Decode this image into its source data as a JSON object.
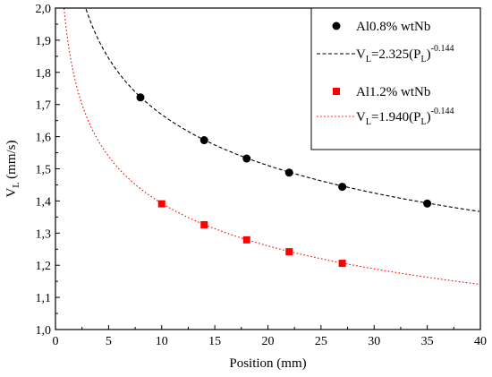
{
  "chart_data": {
    "type": "scatter",
    "xlabel": "Position (mm)",
    "ylabel_main": "V",
    "ylabel_sub": "L",
    "ylabel_unit": " (mm/s)",
    "xlim": [
      0,
      40
    ],
    "ylim": [
      1.0,
      2.0
    ],
    "x_ticks": [
      0,
      5,
      10,
      15,
      20,
      25,
      30,
      35,
      40
    ],
    "x_tick_labels": [
      "0",
      "5",
      "10",
      "15",
      "20",
      "25",
      "30",
      "35",
      "40"
    ],
    "y_ticks": [
      1.0,
      1.1,
      1.2,
      1.3,
      1.4,
      1.5,
      1.6,
      1.7,
      1.8,
      1.9,
      2.0
    ],
    "y_tick_labels": [
      "1,0",
      "1,1",
      "1,2",
      "1,3",
      "1,4",
      "1,5",
      "1,6",
      "1,7",
      "1,8",
      "1,9",
      "2,0"
    ],
    "grid": false,
    "legend_position": "top-right",
    "series": [
      {
        "name": "Al0.8% wtNb",
        "color": "#000000",
        "marker": "circle",
        "x": [
          8,
          14,
          18,
          22,
          27,
          35
        ],
        "y": [
          1.722,
          1.589,
          1.532,
          1.488,
          1.444,
          1.392
        ]
      },
      {
        "name": "Al1.2% wtNb",
        "color": "#ff0000",
        "marker": "square",
        "x": [
          10,
          14,
          18,
          22,
          27
        ],
        "y": [
          1.391,
          1.326,
          1.279,
          1.242,
          1.206
        ]
      }
    ],
    "fits": [
      {
        "color": "#000000",
        "style": "dashed",
        "coefficient": 2.325,
        "exponent": -0.144,
        "label_parts": [
          "V",
          "L",
          "=2.325(P",
          "L",
          ")",
          "-0.144"
        ]
      },
      {
        "color": "#ff0000",
        "style": "dotted",
        "coefficient": 1.94,
        "exponent": -0.144,
        "label_parts": [
          "V",
          "L",
          "=1.940(P",
          "L",
          ")",
          "-0.144"
        ]
      }
    ]
  }
}
